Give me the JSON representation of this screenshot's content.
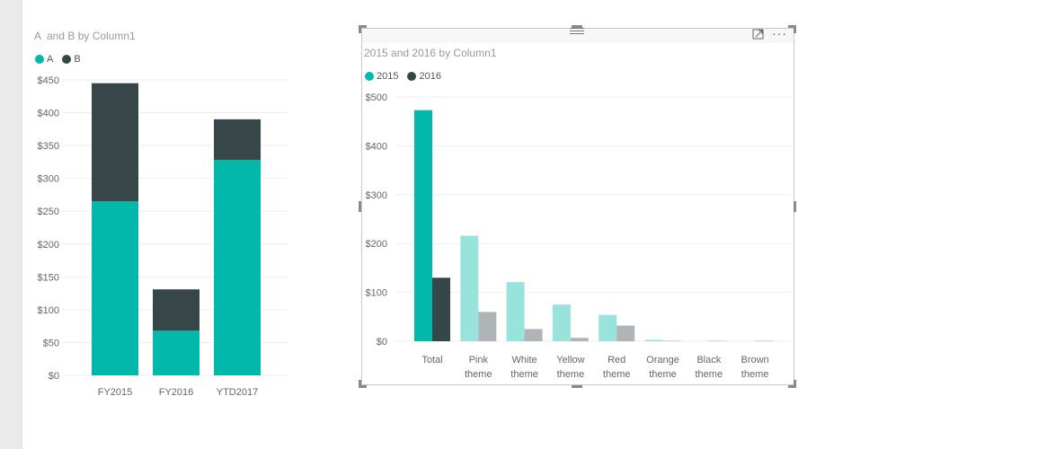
{
  "colors": {
    "teal": "#01b8aa",
    "dark": "#374649",
    "teal_light": "#99e3dd",
    "gray_light": "#afb5b6"
  },
  "left_visual": {
    "title": "A  and B by Column1",
    "legend": [
      {
        "label": "A",
        "color": "#01b8aa"
      },
      {
        "label": "B",
        "color": "#374649"
      }
    ]
  },
  "right_visual": {
    "title": "2015 and 2016 by Column1",
    "legend": [
      {
        "label": "2015",
        "color": "#01b8aa"
      },
      {
        "label": "2016",
        "color": "#374649"
      }
    ],
    "icons": [
      "drag-handle-icon",
      "focus-mode-icon",
      "more-options-icon"
    ]
  },
  "chart_data": [
    {
      "type": "bar",
      "stacked": true,
      "title": "A  and B by Column1",
      "categories": [
        "FY2015",
        "FY2016",
        "YTD2017"
      ],
      "series": [
        {
          "name": "A",
          "values": [
            265,
            68,
            328
          ],
          "color": "#01b8aa"
        },
        {
          "name": "B",
          "values": [
            180,
            63,
            62
          ],
          "color": "#374649"
        }
      ],
      "ylim": [
        0,
        450
      ],
      "yticks": [
        0,
        50,
        100,
        150,
        200,
        250,
        300,
        350,
        400,
        450
      ],
      "ytick_labels": [
        "$0",
        "$50",
        "$100",
        "$150",
        "$200",
        "$250",
        "$300",
        "$350",
        "$400",
        "$450"
      ],
      "grid": true,
      "legend": "top-left"
    },
    {
      "type": "bar",
      "stacked": false,
      "title": "2015 and 2016 by Column1",
      "categories": [
        "Total",
        "Pink\ntheme",
        "White\ntheme",
        "Yellow\ntheme",
        "Red\ntheme",
        "Orange\ntheme",
        "Black\ntheme",
        "Brown\ntheme"
      ],
      "series": [
        {
          "name": "2015",
          "values": [
            473,
            216,
            121,
            75,
            54,
            3,
            0,
            0
          ],
          "color": "#01b8aa"
        },
        {
          "name": "2016",
          "values": [
            130,
            60,
            25,
            7,
            32,
            1,
            1,
            1
          ],
          "color": "#374649"
        }
      ],
      "highlighted_category": "Total",
      "ylim": [
        0,
        500
      ],
      "yticks": [
        0,
        100,
        200,
        300,
        400,
        500
      ],
      "ytick_labels": [
        "$0",
        "$100",
        "$200",
        "$300",
        "$400",
        "$500"
      ],
      "grid": true,
      "legend": "top-left"
    }
  ]
}
